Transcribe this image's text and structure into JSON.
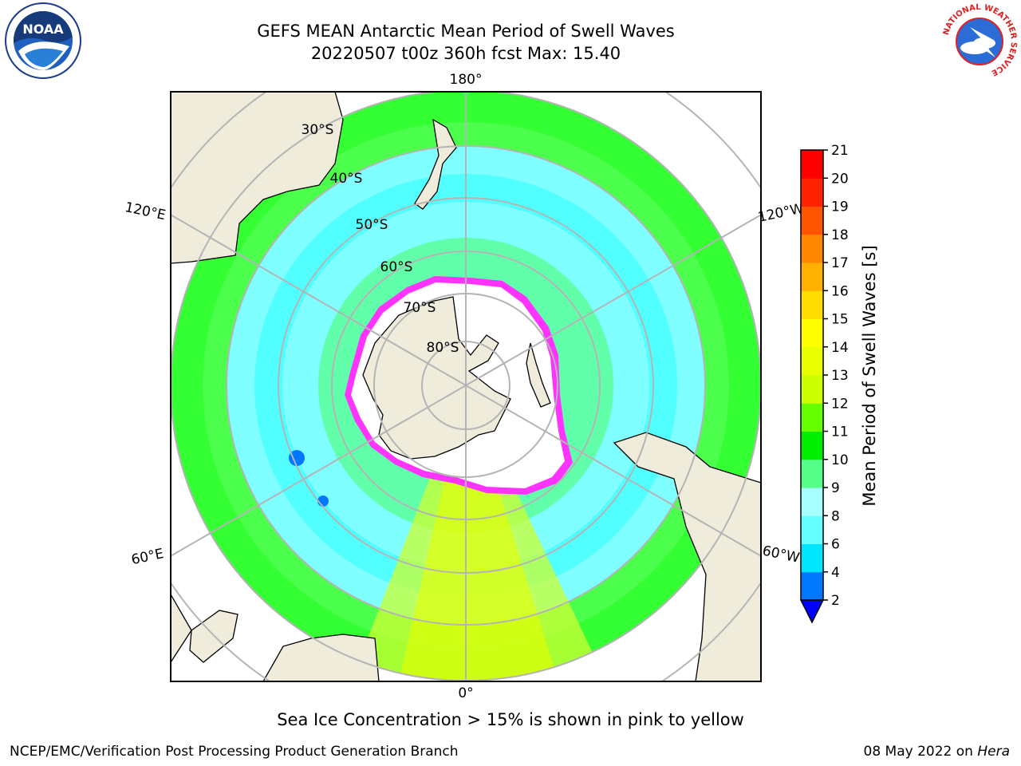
{
  "header": {
    "title_line1": "GEFS MEAN Antarctic Mean Period of Swell Waves",
    "title_line2": "20220507 t00z 360h fcst   Max: 15.40"
  },
  "logos": {
    "left": {
      "icon": "noaa-logo",
      "text": "NOAA"
    },
    "right": {
      "icon": "nws-logo",
      "ring_text": "NATIONAL WEATHER SERVICE"
    }
  },
  "map": {
    "projection": "south-polar-stereographic",
    "meridian_labels": {
      "top": "180°",
      "bottom": "0°",
      "upper_left": "120°E",
      "upper_right": "120°W",
      "lower_left": "60°E",
      "lower_right": "60°W"
    },
    "parallel_labels": [
      "30°S",
      "40°S",
      "50°S",
      "60°S",
      "70°S",
      "80°S"
    ],
    "colors": {
      "land": "#efecdc",
      "ocean_mid": "#7fffff",
      "ocean_band": "#33ff33",
      "ice_edge": "#ff33ff",
      "grid": "#b4b4b4"
    }
  },
  "colorbar": {
    "label": "Mean Period of Swell Waves [s]",
    "ticks": [
      "2",
      "4",
      "6",
      "8",
      "9",
      "10",
      "11",
      "12",
      "13",
      "14",
      "15",
      "16",
      "17",
      "18",
      "19",
      "20",
      "21"
    ],
    "colors": [
      "#0000ff",
      "#0077ff",
      "#00e5ff",
      "#66ffff",
      "#a8ffff",
      "#55ff88",
      "#00ee00",
      "#66ff00",
      "#ccff00",
      "#e8ff00",
      "#ffff00",
      "#ffdd00",
      "#ffb000",
      "#ff8800",
      "#ff5500",
      "#ff2200",
      "#ff0000"
    ]
  },
  "note": "Sea Ice Concentration > 15% is shown in pink to yellow",
  "footer": {
    "left": "NCEP/EMC/Verification Post Processing Product Generation Branch",
    "date": "08 May 2022 on",
    "machine": "Hera"
  }
}
